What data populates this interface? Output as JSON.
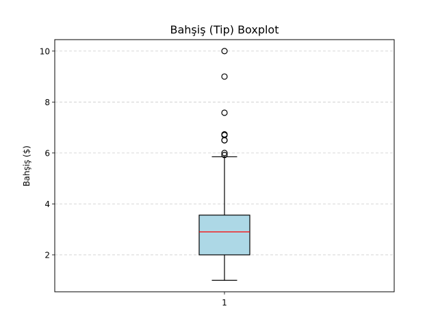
{
  "chart_data": {
    "type": "boxplot",
    "title": "Bahşiş (Tip) Boxplot",
    "xlabel": "",
    "ylabel": "Bahşiş ($)",
    "categories": [
      "1"
    ],
    "yticks": [
      2,
      4,
      6,
      8,
      10
    ],
    "ytick_labels": [
      "2",
      "4",
      "6",
      "8",
      "10"
    ],
    "ylim": [
      0.55,
      10.45
    ],
    "grid": "y-dashed",
    "boxes": [
      {
        "category": "1",
        "whisker_low": 1.0,
        "q1": 2.0,
        "median": 2.9,
        "q3": 3.56,
        "whisker_high": 5.85,
        "outliers": [
          5.92,
          6.0,
          6.5,
          6.5,
          6.7,
          6.73,
          7.58,
          9.0,
          10.0
        ]
      }
    ],
    "colors": {
      "box_fill": "#add8e6",
      "median": "#ff0000",
      "lines": "#000000",
      "grid": "#cccccc"
    }
  }
}
